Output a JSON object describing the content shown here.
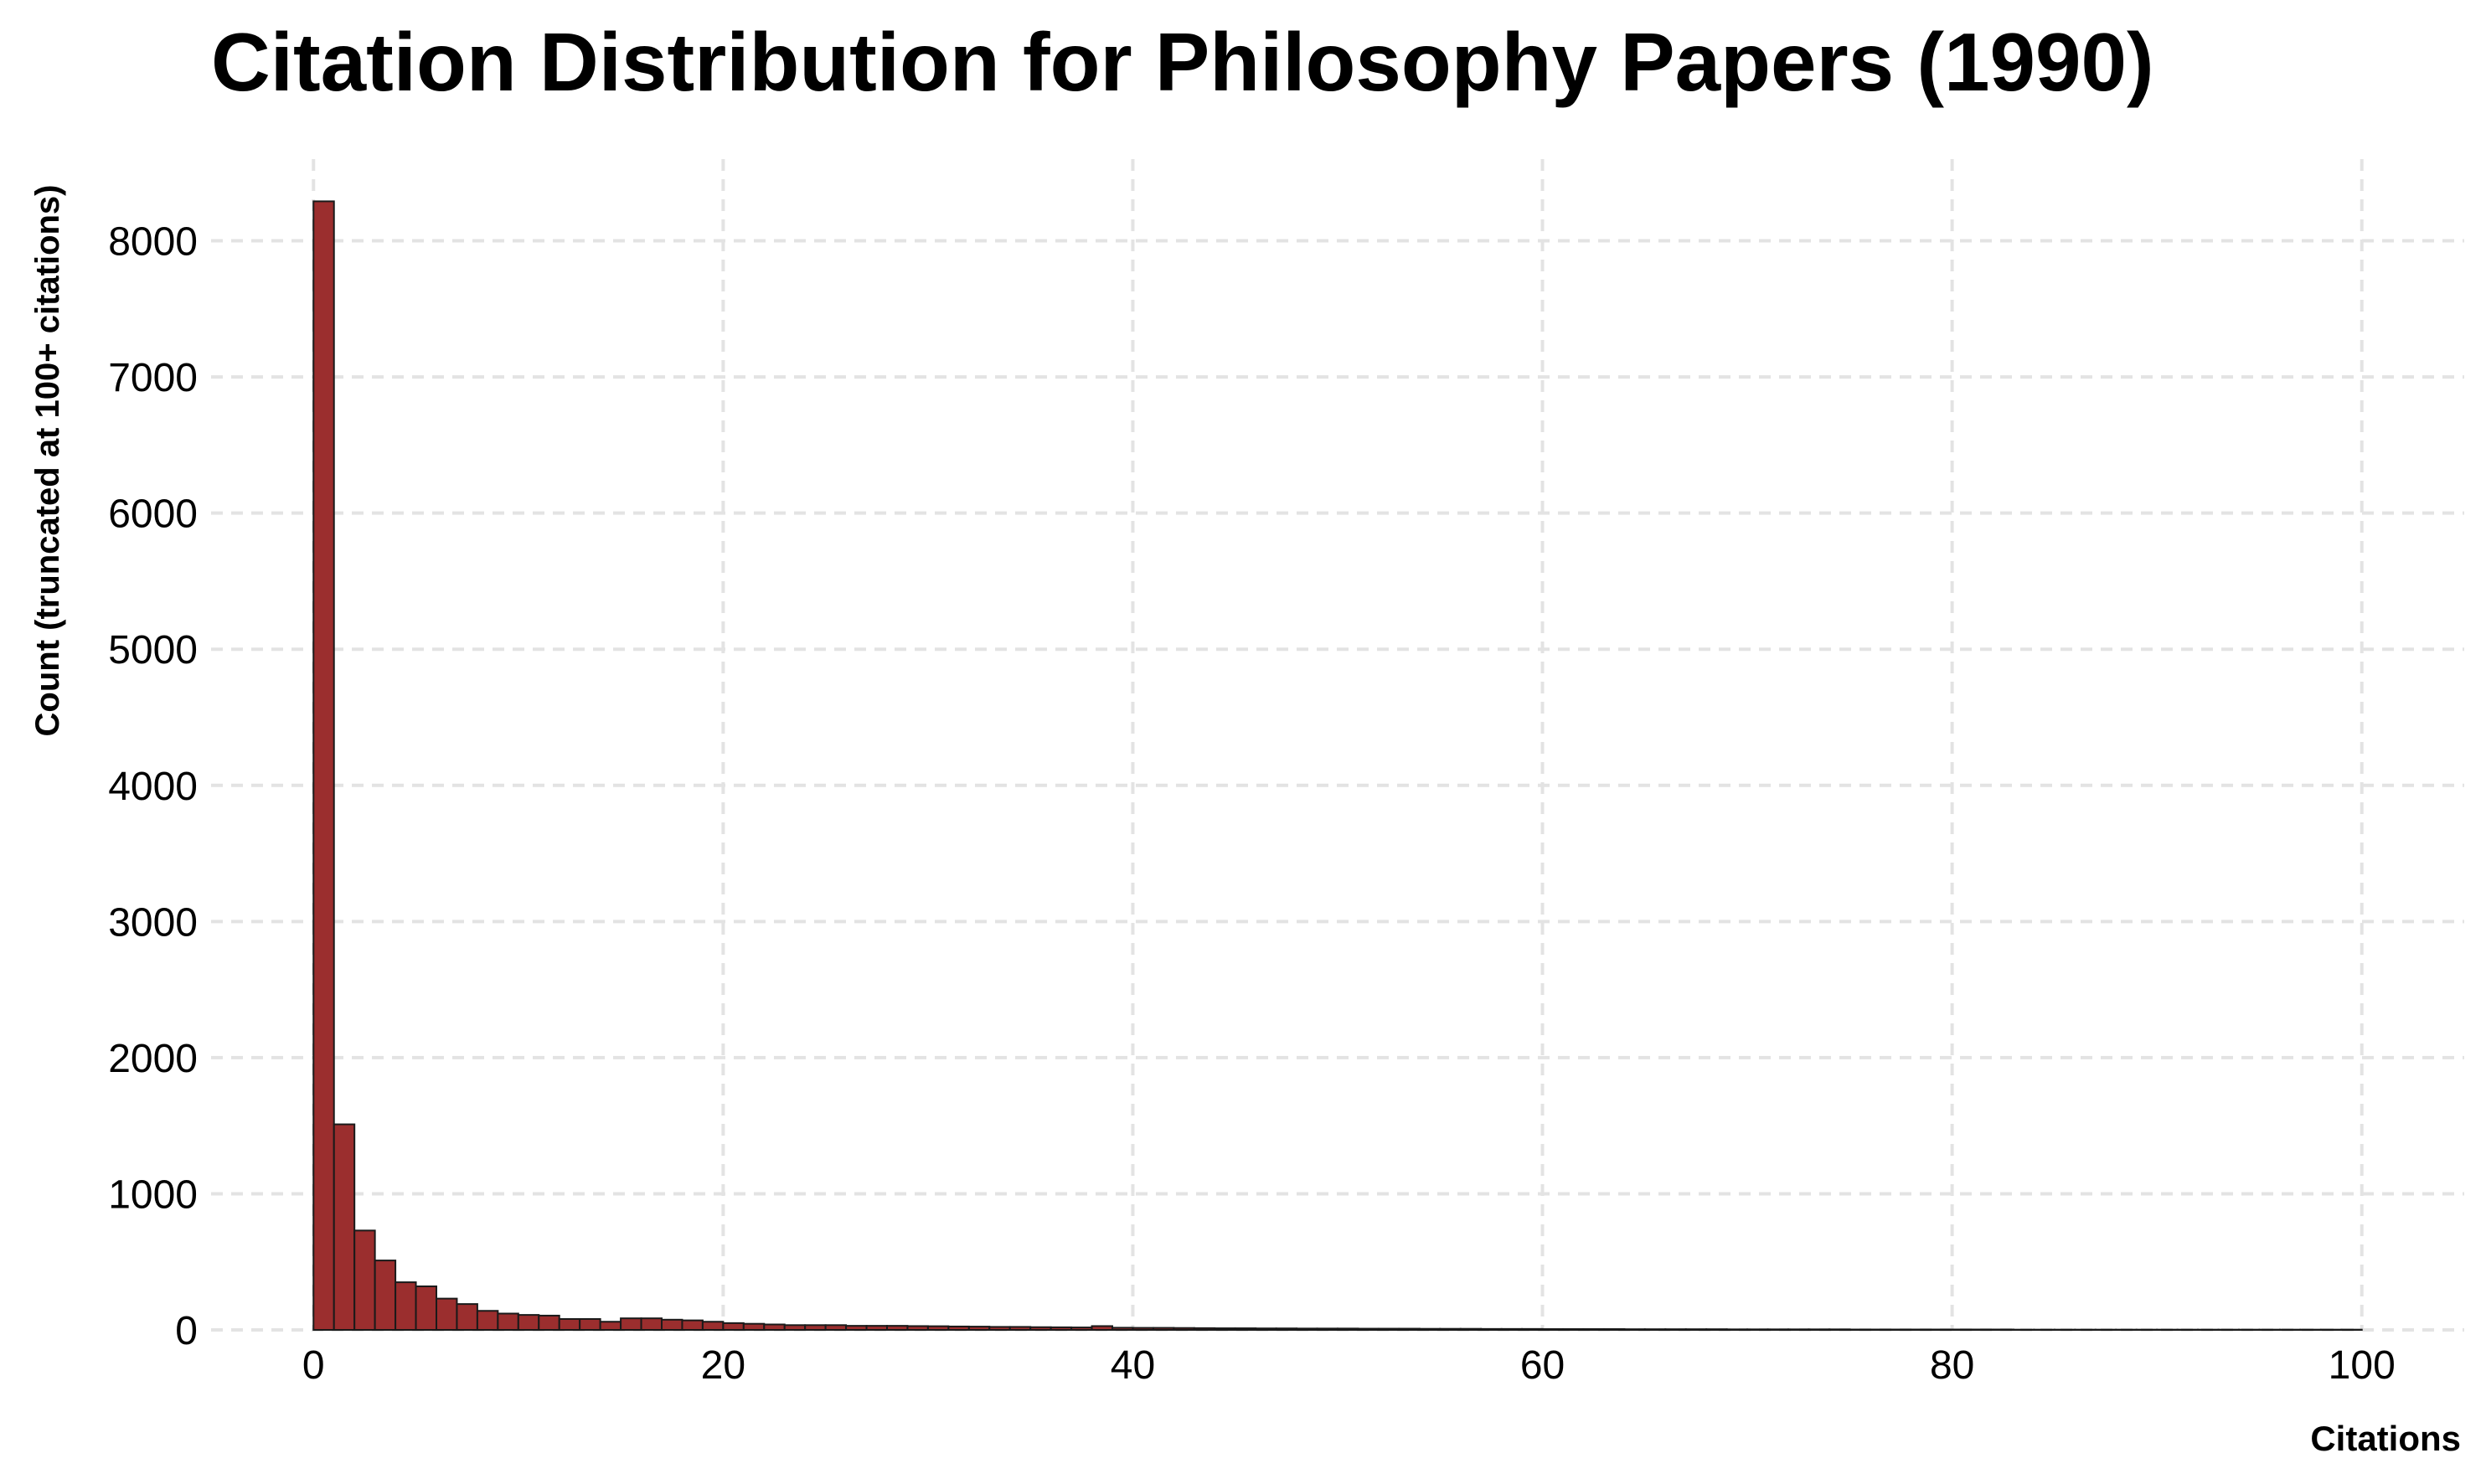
{
  "chart_data": {
    "type": "bar",
    "title": "Citation Distribution for Philosophy Papers (1990)",
    "xlabel": "Citations",
    "ylabel": "Count (truncated at 100+ citations)",
    "xlim": [
      -5,
      105
    ],
    "ylim": [
      0,
      8600
    ],
    "xticks": [
      0,
      20,
      40,
      60,
      80,
      100
    ],
    "yticks": [
      0,
      1000,
      2000,
      3000,
      4000,
      5000,
      6000,
      7000,
      8000
    ],
    "bin_width": 1,
    "bin_starts": [
      0,
      1,
      2,
      3,
      4,
      5,
      6,
      7,
      8,
      9,
      10,
      11,
      12,
      13,
      14,
      15,
      16,
      17,
      18,
      19,
      20,
      21,
      22,
      23,
      24,
      25,
      26,
      27,
      28,
      29,
      30,
      31,
      32,
      33,
      34,
      35,
      36,
      37,
      38,
      39,
      40,
      41,
      42,
      43,
      44,
      45,
      46,
      47,
      48,
      49,
      50,
      51,
      52,
      53,
      54,
      55,
      56,
      57,
      58,
      59,
      60,
      61,
      62,
      63,
      64,
      65,
      66,
      67,
      68,
      69,
      70,
      71,
      72,
      73,
      74,
      75,
      76,
      77,
      78,
      79,
      80,
      81,
      82,
      83,
      84,
      85,
      86,
      87,
      88,
      89,
      90,
      91,
      92,
      93,
      94,
      95,
      96,
      97,
      98,
      99
    ],
    "values": [
      8290,
      1510,
      730,
      510,
      350,
      320,
      230,
      190,
      140,
      120,
      110,
      105,
      80,
      80,
      60,
      85,
      85,
      75,
      70,
      60,
      50,
      45,
      40,
      35,
      35,
      35,
      30,
      30,
      30,
      28,
      27,
      25,
      24,
      22,
      22,
      20,
      19,
      18,
      28,
      16,
      15,
      15,
      14,
      13,
      12,
      12,
      11,
      11,
      10,
      10,
      10,
      9,
      9,
      9,
      8,
      8,
      8,
      7,
      7,
      7,
      6,
      6,
      6,
      6,
      5,
      5,
      5,
      5,
      5,
      4,
      4,
      4,
      4,
      4,
      4,
      3,
      3,
      3,
      3,
      3,
      3,
      3,
      3,
      2,
      2,
      2,
      2,
      2,
      2,
      2,
      2,
      2,
      2,
      2,
      2,
      2,
      2,
      2,
      2,
      2
    ],
    "bar_color": "#9b2e2e",
    "edge_color": "#1a1a1a",
    "grid": true,
    "grid_color": "#e3e3e3"
  }
}
